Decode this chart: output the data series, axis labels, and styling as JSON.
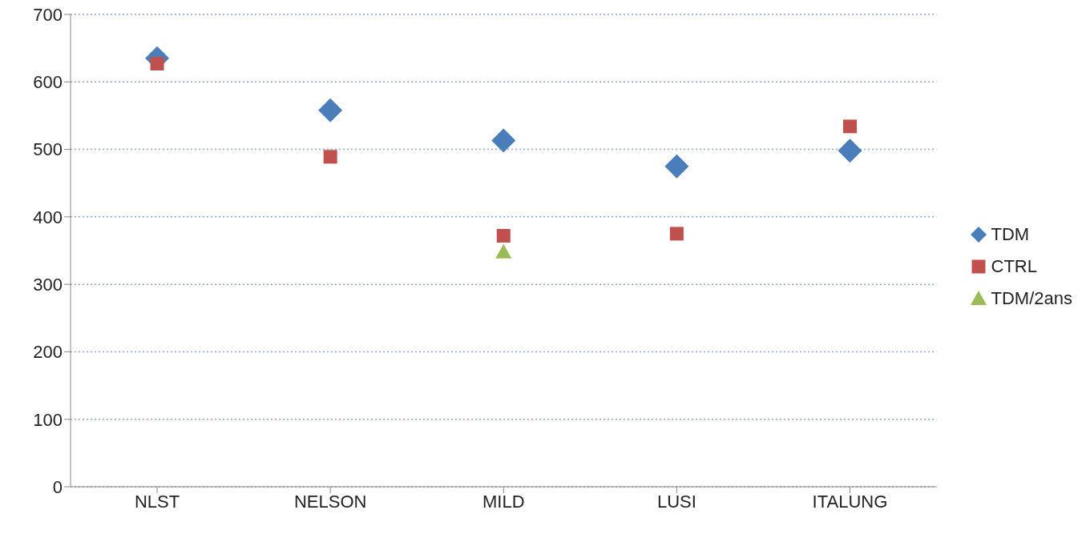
{
  "chart_data": {
    "type": "scatter",
    "categories": [
      "NLST",
      "NELSON",
      "MILD",
      "LUSI",
      "ITALUNG"
    ],
    "series": [
      {
        "name": "TDM",
        "color": "#4a7ebb",
        "marker": "diamond",
        "values": [
          635,
          558,
          513,
          475,
          498
        ]
      },
      {
        "name": "CTRL",
        "color": "#c0504d",
        "marker": "square",
        "values": [
          627,
          489,
          372,
          375,
          534
        ]
      },
      {
        "name": "TDM/2ans",
        "color": "#9bbb59",
        "marker": "triangle",
        "values": [
          null,
          null,
          348,
          null,
          null
        ]
      }
    ],
    "ylim": [
      0,
      700
    ],
    "yticks": [
      0,
      100,
      200,
      300,
      400,
      500,
      600,
      700
    ],
    "grid": "y",
    "legend": "right"
  }
}
